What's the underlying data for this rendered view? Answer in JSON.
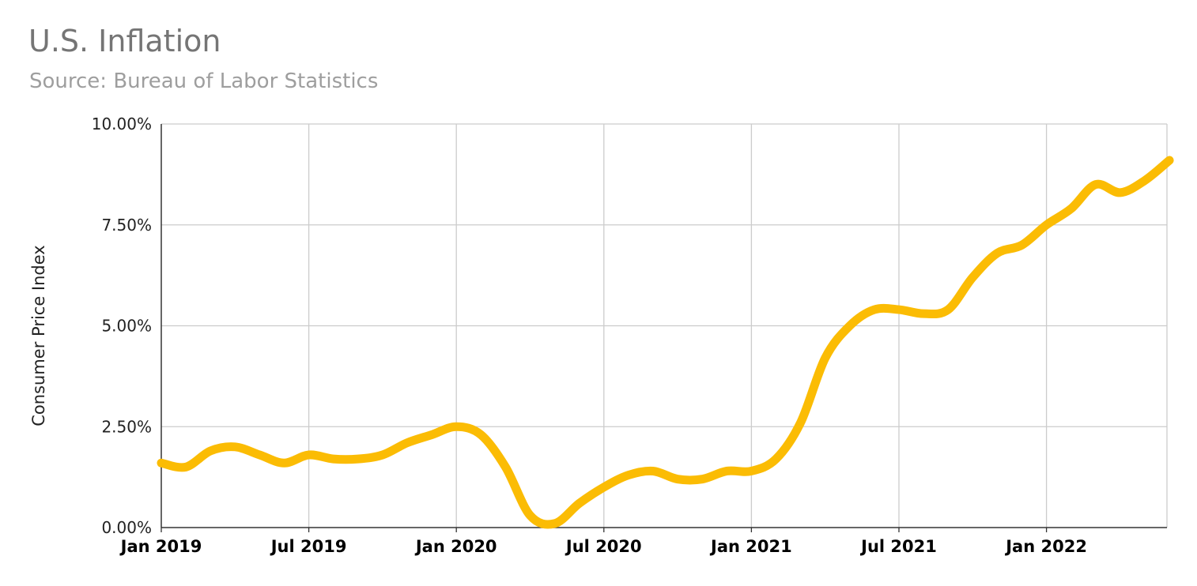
{
  "chart_data": {
    "type": "line",
    "title": "U.S. Inflation",
    "subtitle": "Source: Bureau of Labor Statistics",
    "ylabel": "Consumer Price Index",
    "xlabel": "",
    "x_ticks": [
      "Jan 2019",
      "Jul 2019",
      "Jan 2020",
      "Jul 2020",
      "Jan 2021",
      "Jul 2021",
      "Jan 2022"
    ],
    "y_ticks": [
      "0.00%",
      "2.50%",
      "5.00%",
      "7.50%",
      "10.00%"
    ],
    "ylim": [
      0,
      10
    ],
    "grid": true,
    "legend": "none",
    "colors": {
      "line": "#FBBC04",
      "grid": "#cccccc",
      "axis": "#333333"
    },
    "series": [
      {
        "x": [
          "2019-01",
          "2019-02",
          "2019-03",
          "2019-04",
          "2019-05",
          "2019-06",
          "2019-07",
          "2019-08",
          "2019-09",
          "2019-10",
          "2019-11",
          "2019-12",
          "2020-01",
          "2020-02",
          "2020-03",
          "2020-04",
          "2020-05",
          "2020-06",
          "2020-07",
          "2020-08",
          "2020-09",
          "2020-10",
          "2020-11",
          "2020-12",
          "2021-01",
          "2021-02",
          "2021-03",
          "2021-04",
          "2021-05",
          "2021-06",
          "2021-07",
          "2021-08",
          "2021-09",
          "2021-10",
          "2021-11",
          "2021-12",
          "2022-01",
          "2022-02",
          "2022-03",
          "2022-04",
          "2022-05",
          "2022-06"
        ],
        "values": [
          1.6,
          1.5,
          1.9,
          2.0,
          1.8,
          1.6,
          1.8,
          1.7,
          1.7,
          1.8,
          2.1,
          2.3,
          2.5,
          2.3,
          1.5,
          0.3,
          0.1,
          0.6,
          1.0,
          1.3,
          1.4,
          1.2,
          1.2,
          1.4,
          1.4,
          1.7,
          2.6,
          4.2,
          5.0,
          5.4,
          5.4,
          5.3,
          5.4,
          6.2,
          6.8,
          7.0,
          7.5,
          7.9,
          8.5,
          8.3,
          8.6,
          9.1
        ]
      }
    ]
  }
}
